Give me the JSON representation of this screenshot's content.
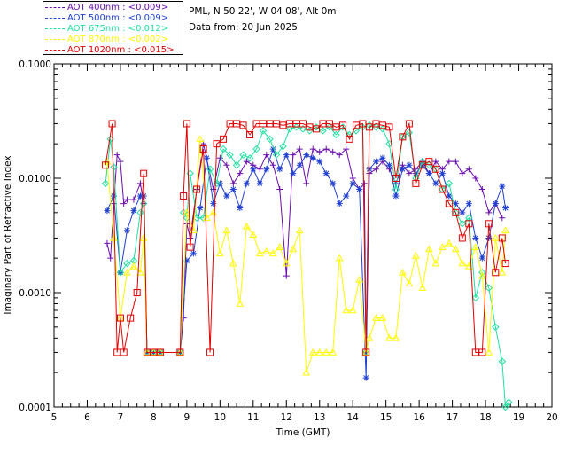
{
  "header": {
    "site_line": "PML, N 50 22', W 04 08', Alt 0m",
    "date_line": "Data from: 20 Jun 2025"
  },
  "legend": [
    {
      "label": "AOT  400nm : <0.009>",
      "color": "#6a0dad"
    },
    {
      "label": "AOT  500nm : <0.009>",
      "color": "#1f3fd0"
    },
    {
      "label": "AOT  675nm : <0.012>",
      "color": "#1fe0a0"
    },
    {
      "label": "AOT  870nm : <0.002>",
      "color": "#ffff00"
    },
    {
      "label": "AOT 1020nm : <0.015>",
      "color": "#e00000"
    }
  ],
  "chart_data": {
    "type": "line",
    "title": "",
    "xlabel": "Time (GMT)",
    "ylabel": "Imaginary Part of Refractive Index",
    "xlim": [
      5,
      20
    ],
    "ylim": [
      0.0001,
      0.1
    ],
    "yscale": "log",
    "xticks": [
      "5",
      "6",
      "7",
      "8",
      "9",
      "10",
      "11",
      "12",
      "13",
      "14",
      "15",
      "16",
      "17",
      "18",
      "19",
      "20"
    ],
    "yticks": [
      "0.0001",
      "0.0010",
      "0.0100",
      "0.1000"
    ],
    "grid": false,
    "legend_position": "top-left, above plot",
    "series": [
      {
        "name": "AOT  400nm : <0.009>",
        "color": "#6a0dad",
        "marker": "plus",
        "x": [
          6.6,
          6.7,
          6.8,
          6.9,
          7.0,
          7.1,
          7.2,
          7.4,
          7.6,
          7.7,
          7.8,
          8.0,
          8.2,
          8.8,
          8.9,
          9.0,
          9.1,
          9.3,
          9.5,
          9.8,
          10.0,
          10.2,
          10.4,
          10.6,
          10.8,
          11.0,
          11.2,
          11.4,
          11.6,
          11.8,
          12.0,
          12.2,
          12.4,
          12.6,
          12.8,
          13.0,
          13.2,
          13.4,
          13.6,
          13.8,
          14.0,
          14.2,
          14.35,
          14.4,
          14.5,
          14.7,
          14.9,
          15.1,
          15.3,
          15.5,
          15.7,
          15.9,
          16.1,
          16.3,
          16.5,
          16.7,
          16.9,
          17.1,
          17.3,
          17.5,
          17.7,
          17.9,
          18.1,
          18.3,
          18.5
        ],
        "y": [
          0.0027,
          0.002,
          0.006,
          0.016,
          0.014,
          0.006,
          0.0065,
          0.0065,
          0.009,
          0.006,
          0.0003,
          0.0003,
          0.0003,
          0.0003,
          0.0006,
          0.004,
          0.003,
          0.008,
          0.02,
          0.008,
          0.015,
          0.013,
          0.009,
          0.011,
          0.014,
          0.013,
          0.012,
          0.016,
          0.013,
          0.008,
          0.0014,
          0.016,
          0.018,
          0.009,
          0.018,
          0.017,
          0.018,
          0.017,
          0.016,
          0.018,
          0.01,
          0.008,
          0.009,
          0.0003,
          0.011,
          0.012,
          0.014,
          0.012,
          0.009,
          0.013,
          0.011,
          0.012,
          0.014,
          0.011,
          0.014,
          0.012,
          0.014,
          0.014,
          0.011,
          0.012,
          0.01,
          0.008,
          0.005,
          0.006,
          0.0045
        ]
      },
      {
        "name": "AOT  500nm : <0.009>",
        "color": "#1f3fd0",
        "marker": "asterisk",
        "x": [
          6.6,
          6.8,
          7.0,
          7.2,
          7.4,
          7.6,
          7.7,
          7.8,
          8.0,
          8.2,
          8.8,
          9.0,
          9.2,
          9.4,
          9.6,
          9.8,
          10.0,
          10.2,
          10.4,
          10.6,
          10.8,
          11.0,
          11.2,
          11.4,
          11.6,
          11.8,
          12.0,
          12.2,
          12.4,
          12.6,
          12.8,
          13.0,
          13.2,
          13.4,
          13.6,
          13.8,
          14.0,
          14.2,
          14.4,
          14.5,
          14.7,
          14.9,
          15.1,
          15.3,
          15.5,
          15.7,
          15.9,
          16.1,
          16.3,
          16.5,
          16.7,
          16.9,
          17.1,
          17.3,
          17.5,
          17.7,
          17.9,
          18.1,
          18.3,
          18.5,
          18.6
        ],
        "y": [
          0.0052,
          0.007,
          0.0015,
          0.0035,
          0.0052,
          0.007,
          0.007,
          0.0003,
          0.0003,
          0.0003,
          0.0003,
          0.0019,
          0.0022,
          0.0055,
          0.015,
          0.006,
          0.009,
          0.007,
          0.008,
          0.0055,
          0.009,
          0.012,
          0.009,
          0.012,
          0.018,
          0.012,
          0.016,
          0.011,
          0.013,
          0.016,
          0.015,
          0.014,
          0.011,
          0.009,
          0.006,
          0.007,
          0.009,
          0.008,
          0.00018,
          0.012,
          0.014,
          0.015,
          0.013,
          0.007,
          0.012,
          0.013,
          0.011,
          0.013,
          0.011,
          0.009,
          0.011,
          0.007,
          0.006,
          0.005,
          0.006,
          0.003,
          0.002,
          0.003,
          0.006,
          0.0085,
          0.0055
        ]
      },
      {
        "name": "AOT  675nm : <0.012>",
        "color": "#1fe0a0",
        "marker": "diamond",
        "x": [
          6.55,
          6.7,
          6.8,
          7.0,
          7.2,
          7.4,
          7.6,
          7.7,
          7.8,
          8.0,
          8.2,
          8.8,
          8.9,
          9.0,
          9.1,
          9.3,
          9.5,
          9.7,
          9.9,
          10.1,
          10.3,
          10.5,
          10.7,
          10.9,
          11.1,
          11.3,
          11.5,
          11.7,
          11.9,
          12.1,
          12.3,
          12.5,
          12.7,
          12.9,
          13.1,
          13.3,
          13.5,
          13.7,
          13.9,
          14.1,
          14.3,
          14.4,
          14.5,
          14.7,
          14.9,
          15.1,
          15.3,
          15.5,
          15.7,
          15.9,
          16.1,
          16.3,
          16.5,
          16.7,
          16.9,
          17.1,
          17.3,
          17.5,
          17.7,
          17.9,
          18.1,
          18.3,
          18.5,
          18.6,
          18.7
        ],
        "y": [
          0.009,
          0.022,
          0.0125,
          0.0015,
          0.0018,
          0.0019,
          0.005,
          0.006,
          0.0003,
          0.0003,
          0.0003,
          0.0003,
          0.005,
          0.0045,
          0.011,
          0.0045,
          0.0045,
          0.012,
          0.009,
          0.018,
          0.016,
          0.013,
          0.016,
          0.015,
          0.018,
          0.026,
          0.022,
          0.016,
          0.019,
          0.027,
          0.028,
          0.027,
          0.026,
          0.028,
          0.026,
          0.028,
          0.024,
          0.028,
          0.024,
          0.026,
          0.028,
          0.0003,
          0.029,
          0.028,
          0.027,
          0.02,
          0.008,
          0.023,
          0.025,
          0.01,
          0.014,
          0.013,
          0.012,
          0.008,
          0.009,
          0.005,
          0.004,
          0.0045,
          0.0009,
          0.0015,
          0.0011,
          0.0005,
          0.00025,
          0.0001,
          0.00011
        ]
      },
      {
        "name": "AOT  870nm : <0.002>",
        "color": "#ffff00",
        "marker": "triangle",
        "x": [
          6.6,
          6.8,
          7.0,
          7.2,
          7.4,
          7.6,
          7.7,
          7.8,
          8.0,
          8.2,
          8.8,
          9.0,
          9.2,
          9.4,
          9.6,
          9.8,
          10.0,
          10.2,
          10.4,
          10.6,
          10.8,
          11.0,
          11.2,
          11.4,
          11.6,
          11.8,
          12.0,
          12.2,
          12.4,
          12.6,
          12.8,
          13.0,
          13.2,
          13.4,
          13.6,
          13.8,
          14.0,
          14.2,
          14.4,
          14.5,
          14.7,
          14.9,
          15.1,
          15.3,
          15.5,
          15.7,
          15.9,
          16.1,
          16.3,
          16.5,
          16.7,
          16.9,
          17.1,
          17.3,
          17.5,
          17.7,
          17.9,
          18.1,
          18.3,
          18.5,
          18.6
        ],
        "y": [
          0.014,
          0.003,
          0.0006,
          0.0015,
          0.0017,
          0.0015,
          0.003,
          0.0003,
          0.0003,
          0.0003,
          0.0003,
          0.005,
          0.0035,
          0.022,
          0.0045,
          0.005,
          0.0022,
          0.0035,
          0.0018,
          0.0008,
          0.0038,
          0.0032,
          0.0022,
          0.0023,
          0.0022,
          0.0025,
          0.0018,
          0.0024,
          0.0035,
          0.0002,
          0.0003,
          0.0003,
          0.0003,
          0.0003,
          0.002,
          0.0007,
          0.0007,
          0.0013,
          0.0003,
          0.0004,
          0.0006,
          0.0006,
          0.0004,
          0.0004,
          0.0015,
          0.0012,
          0.0021,
          0.0011,
          0.0024,
          0.0018,
          0.0025,
          0.0027,
          0.0024,
          0.0018,
          0.0017,
          0.0025,
          0.0014,
          0.0003,
          0.003,
          0.0015,
          0.0035
        ]
      },
      {
        "name": "AOT 1020nm : <0.015>",
        "color": "#e00000",
        "marker": "square",
        "x": [
          6.55,
          6.75,
          6.9,
          7.0,
          7.1,
          7.3,
          7.5,
          7.7,
          7.8,
          8.0,
          8.2,
          8.8,
          8.9,
          9.0,
          9.1,
          9.3,
          9.5,
          9.7,
          9.9,
          10.1,
          10.3,
          10.5,
          10.7,
          10.9,
          11.1,
          11.3,
          11.5,
          11.7,
          11.9,
          12.1,
          12.3,
          12.5,
          12.7,
          12.9,
          13.1,
          13.3,
          13.5,
          13.7,
          13.9,
          14.1,
          14.3,
          14.4,
          14.5,
          14.7,
          14.9,
          15.1,
          15.3,
          15.5,
          15.7,
          15.9,
          16.1,
          16.3,
          16.5,
          16.7,
          16.9,
          17.1,
          17.3,
          17.5,
          17.7,
          17.9,
          18.1,
          18.3,
          18.5,
          18.6
        ],
        "y": [
          0.013,
          0.03,
          0.0003,
          0.0006,
          0.0003,
          0.0006,
          0.001,
          0.011,
          0.0003,
          0.0003,
          0.0003,
          0.0003,
          0.007,
          0.03,
          0.0025,
          0.008,
          0.018,
          0.0003,
          0.02,
          0.022,
          0.03,
          0.03,
          0.029,
          0.024,
          0.03,
          0.03,
          0.03,
          0.03,
          0.029,
          0.03,
          0.03,
          0.03,
          0.028,
          0.027,
          0.03,
          0.03,
          0.028,
          0.029,
          0.022,
          0.029,
          0.03,
          0.0003,
          0.028,
          0.03,
          0.029,
          0.028,
          0.01,
          0.023,
          0.03,
          0.009,
          0.013,
          0.014,
          0.012,
          0.008,
          0.006,
          0.005,
          0.003,
          0.004,
          0.0003,
          0.0003,
          0.004,
          0.0015,
          0.003,
          0.0018
        ]
      }
    ]
  }
}
